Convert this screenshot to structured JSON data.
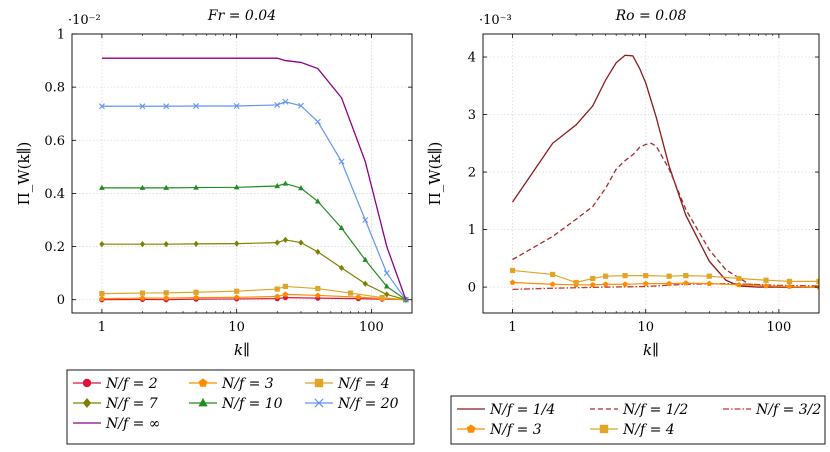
{
  "chart_data": [
    {
      "type": "line",
      "title": "Fr = 0.04",
      "exponent_label": "·10⁻²",
      "xlabel": "k∥",
      "ylabel": "Π_W(k∥)",
      "xscale": "log",
      "xlim": [
        0.6,
        200
      ],
      "ylim": [
        -0.05,
        1
      ],
      "xticks": [
        {
          "v": 1,
          "label": "1"
        },
        {
          "v": 10,
          "label": "10"
        },
        {
          "v": 100,
          "label": "100"
        }
      ],
      "yticks": [
        {
          "v": 0,
          "label": "0"
        },
        {
          "v": 0.2,
          "label": "0.2"
        },
        {
          "v": 0.4,
          "label": "0.4"
        },
        {
          "v": 0.6,
          "label": "0.6"
        },
        {
          "v": 0.8,
          "label": "0.8"
        },
        {
          "v": 1,
          "label": "1"
        }
      ],
      "legend_placement": "below",
      "legend_columns": 3,
      "series": [
        {
          "name": "N/f = 2",
          "color": "#dc143c",
          "marker": "circle",
          "dash": "solid",
          "points": [
            [
              1,
              0.0
            ],
            [
              2,
              0.001
            ],
            [
              3,
              0.0
            ],
            [
              5,
              0.002
            ],
            [
              10,
              0.003
            ],
            [
              20,
              0.004
            ],
            [
              23,
              0.008
            ],
            [
              40,
              0.006
            ],
            [
              80,
              0.004
            ],
            [
              120,
              0.002
            ],
            [
              180,
              0.0
            ]
          ]
        },
        {
          "name": "N/f = 3",
          "color": "#ff8c00",
          "marker": "pentagon",
          "dash": "solid",
          "points": [
            [
              1,
              0.004
            ],
            [
              2,
              0.006
            ],
            [
              3,
              0.006
            ],
            [
              5,
              0.008
            ],
            [
              10,
              0.009
            ],
            [
              20,
              0.012
            ],
            [
              23,
              0.02
            ],
            [
              40,
              0.016
            ],
            [
              80,
              0.01
            ],
            [
              120,
              0.004
            ],
            [
              180,
              0.0
            ]
          ]
        },
        {
          "name": "N/f = 4",
          "color": "#e0a526",
          "marker": "square",
          "dash": "solid",
          "points": [
            [
              1,
              0.023
            ],
            [
              2,
              0.025
            ],
            [
              3,
              0.026
            ],
            [
              5,
              0.028
            ],
            [
              10,
              0.032
            ],
            [
              20,
              0.04
            ],
            [
              23,
              0.05
            ],
            [
              40,
              0.042
            ],
            [
              70,
              0.025
            ],
            [
              120,
              0.008
            ],
            [
              180,
              0.0
            ]
          ]
        },
        {
          "name": "N/f = 7",
          "color": "#808000",
          "marker": "diamond",
          "dash": "solid",
          "points": [
            [
              1,
              0.209
            ],
            [
              2,
              0.209
            ],
            [
              3,
              0.209
            ],
            [
              5,
              0.21
            ],
            [
              10,
              0.211
            ],
            [
              20,
              0.215
            ],
            [
              23,
              0.225
            ],
            [
              30,
              0.215
            ],
            [
              40,
              0.18
            ],
            [
              60,
              0.12
            ],
            [
              90,
              0.06
            ],
            [
              130,
              0.02
            ],
            [
              180,
              0.0
            ]
          ]
        },
        {
          "name": "N/f = 10",
          "color": "#228b22",
          "marker": "triangle",
          "dash": "solid",
          "points": [
            [
              1,
              0.421
            ],
            [
              2,
              0.421
            ],
            [
              3,
              0.421
            ],
            [
              5,
              0.422
            ],
            [
              10,
              0.423
            ],
            [
              20,
              0.428
            ],
            [
              23,
              0.437
            ],
            [
              30,
              0.42
            ],
            [
              40,
              0.37
            ],
            [
              60,
              0.27
            ],
            [
              90,
              0.15
            ],
            [
              130,
              0.05
            ],
            [
              180,
              0.0
            ]
          ]
        },
        {
          "name": "N/f = 20",
          "color": "#6495ed",
          "marker": "x",
          "dash": "solid",
          "points": [
            [
              1,
              0.728
            ],
            [
              2,
              0.728
            ],
            [
              3,
              0.728
            ],
            [
              5,
              0.729
            ],
            [
              10,
              0.729
            ],
            [
              20,
              0.733
            ],
            [
              23,
              0.745
            ],
            [
              30,
              0.73
            ],
            [
              40,
              0.67
            ],
            [
              60,
              0.52
            ],
            [
              90,
              0.3
            ],
            [
              130,
              0.1
            ],
            [
              180,
              0.0
            ]
          ]
        },
        {
          "name": "N/f = ∞",
          "color": "#8b008b",
          "marker": "none",
          "dash": "solid",
          "points": [
            [
              1,
              0.909
            ],
            [
              2,
              0.909
            ],
            [
              3,
              0.909
            ],
            [
              5,
              0.909
            ],
            [
              10,
              0.909
            ],
            [
              20,
              0.909
            ],
            [
              23,
              0.9
            ],
            [
              30,
              0.893
            ],
            [
              40,
              0.87
            ],
            [
              60,
              0.76
            ],
            [
              90,
              0.52
            ],
            [
              130,
              0.2
            ],
            [
              180,
              0.0
            ]
          ]
        }
      ],
      "legend_rows": [
        [
          "N/f = 2",
          "N/f = 3",
          "N/f = 4"
        ],
        [
          "N/f = 7",
          "N/f = 10",
          "N/f = 20"
        ],
        [
          "N/f = ∞"
        ]
      ]
    },
    {
      "type": "line",
      "title": "Ro = 0.08",
      "exponent_label": "·10⁻³",
      "xlabel": "k∥",
      "ylabel": "Π_W(k∥)",
      "xscale": "log",
      "xlim": [
        0.6,
        200
      ],
      "ylim": [
        -0.45,
        4.4
      ],
      "xticks": [
        {
          "v": 1,
          "label": "1"
        },
        {
          "v": 10,
          "label": "10"
        },
        {
          "v": 100,
          "label": "100"
        }
      ],
      "yticks": [
        {
          "v": 0,
          "label": "0"
        },
        {
          "v": 1,
          "label": "1"
        },
        {
          "v": 2,
          "label": "2"
        },
        {
          "v": 3,
          "label": "3"
        },
        {
          "v": 4,
          "label": "4"
        }
      ],
      "legend_placement": "below",
      "legend_columns": 3,
      "series": [
        {
          "name": "N/f = 1/4",
          "color": "#8b1a1a",
          "marker": "none",
          "dash": "solid",
          "points": [
            [
              1,
              1.48
            ],
            [
              2,
              2.5
            ],
            [
              3,
              2.82
            ],
            [
              4,
              3.15
            ],
            [
              5,
              3.6
            ],
            [
              6,
              3.9
            ],
            [
              7,
              4.03
            ],
            [
              8,
              4.02
            ],
            [
              9,
              3.8
            ],
            [
              10,
              3.55
            ],
            [
              12,
              2.95
            ],
            [
              15,
              2.1
            ],
            [
              20,
              1.25
            ],
            [
              30,
              0.45
            ],
            [
              40,
              0.12
            ],
            [
              50,
              0.02
            ],
            [
              70,
              0.0
            ],
            [
              100,
              0.0
            ],
            [
              200,
              0.0
            ]
          ]
        },
        {
          "name": "N/f = 1/2",
          "color": "#a52a2a",
          "marker": "none",
          "dash": "dashed",
          "points": [
            [
              1,
              0.48
            ],
            [
              2,
              0.88
            ],
            [
              3,
              1.18
            ],
            [
              4,
              1.4
            ],
            [
              5,
              1.72
            ],
            [
              6,
              2.05
            ],
            [
              7,
              2.2
            ],
            [
              8,
              2.3
            ],
            [
              9,
              2.43
            ],
            [
              10,
              2.48
            ],
            [
              11,
              2.5
            ],
            [
              12,
              2.45
            ],
            [
              15,
              2.05
            ],
            [
              20,
              1.35
            ],
            [
              30,
              0.65
            ],
            [
              40,
              0.3
            ],
            [
              60,
              0.05
            ],
            [
              100,
              0.0
            ],
            [
              200,
              0.0
            ]
          ]
        },
        {
          "name": "N/f = 3/2",
          "color": "#c0392b",
          "marker": "none",
          "dash": "dashdot",
          "points": [
            [
              1,
              -0.04
            ],
            [
              2,
              -0.02
            ],
            [
              5,
              0.0
            ],
            [
              10,
              0.01
            ],
            [
              20,
              0.05
            ],
            [
              40,
              0.06
            ],
            [
              60,
              0.05
            ],
            [
              100,
              0.03
            ],
            [
              200,
              0.02
            ]
          ]
        },
        {
          "name": "N/f = 3",
          "color": "#ff8c00",
          "marker": "pentagon",
          "dash": "solid",
          "points": [
            [
              1,
              0.08
            ],
            [
              2,
              0.05
            ],
            [
              3,
              0.04
            ],
            [
              4,
              0.04
            ],
            [
              5,
              0.05
            ],
            [
              7,
              0.05
            ],
            [
              10,
              0.06
            ],
            [
              15,
              0.06
            ],
            [
              20,
              0.07
            ],
            [
              30,
              0.06
            ],
            [
              50,
              0.04
            ],
            [
              80,
              0.02
            ],
            [
              120,
              0.01
            ],
            [
              200,
              0.0
            ]
          ]
        },
        {
          "name": "N/f = 4",
          "color": "#e0a526",
          "marker": "square",
          "dash": "solid",
          "points": [
            [
              1,
              0.29
            ],
            [
              2,
              0.22
            ],
            [
              3,
              0.08
            ],
            [
              4,
              0.15
            ],
            [
              5,
              0.19
            ],
            [
              7,
              0.2
            ],
            [
              10,
              0.2
            ],
            [
              15,
              0.19
            ],
            [
              20,
              0.2
            ],
            [
              30,
              0.19
            ],
            [
              50,
              0.15
            ],
            [
              80,
              0.12
            ],
            [
              120,
              0.1
            ],
            [
              200,
              0.1
            ]
          ]
        }
      ],
      "legend_rows": [
        [
          "N/f = 1/4",
          "N/f = 1/2",
          "N/f = 3/2"
        ],
        [
          "N/f = 3",
          "N/f = 4"
        ]
      ]
    }
  ]
}
